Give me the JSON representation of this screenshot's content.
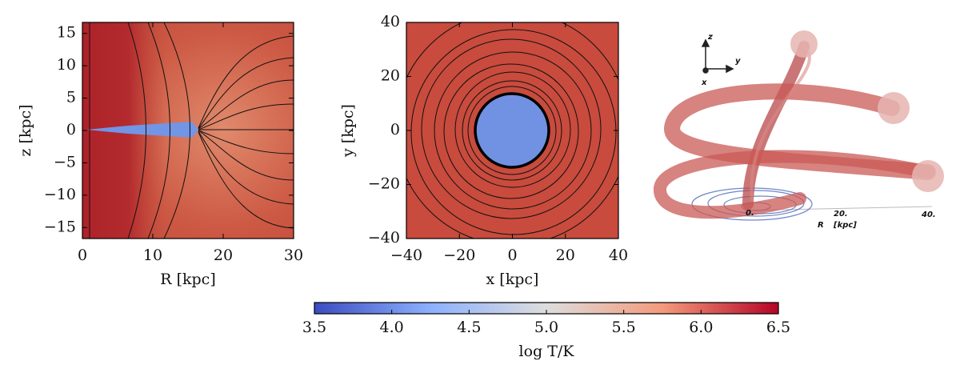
{
  "chart_data": [
    {
      "type": "heatmap",
      "xlabel": "R [kpc]",
      "ylabel": "z [kpc]",
      "xlim": [
        0,
        30
      ],
      "ylim": [
        -16.7,
        16.7
      ],
      "xticks": [
        0,
        10,
        20,
        30
      ],
      "yticks": [
        {
          "value": -15,
          "label": "−15"
        },
        {
          "value": -10,
          "label": "−10"
        },
        {
          "value": -5,
          "label": "−5"
        },
        0,
        5,
        10,
        15
      ]
    },
    {
      "type": "heatmap",
      "xlabel": "x [kpc]",
      "ylabel": "y [kpc]",
      "xlim": [
        -40,
        40
      ],
      "ylim": [
        -40,
        40
      ],
      "xticks": [
        {
          "value": -40,
          "label": "−40"
        },
        {
          "value": -20,
          "label": "−20"
        },
        0,
        20,
        40
      ],
      "yticks": [
        {
          "value": -40,
          "label": "−40"
        },
        {
          "value": -20,
          "label": "−20"
        },
        0,
        20,
        40
      ]
    },
    {
      "type": "3d",
      "axis_labels": [
        "z",
        "y",
        "x"
      ],
      "rlabel": "R",
      "runit": "[kpc]",
      "rticks": [
        {
          "value": 0,
          "label": "0."
        },
        {
          "value": 20,
          "label": "20."
        },
        {
          "value": 40,
          "label": "40."
        }
      ]
    }
  ],
  "colorbar": {
    "label": "log T/K",
    "lim": [
      3.5,
      6.5
    ],
    "ticks": [
      3.5,
      {
        "value": 4,
        "label": "4.0"
      },
      4.5,
      {
        "value": 5,
        "label": "5.0"
      },
      5.5,
      {
        "value": 6,
        "label": "6.0"
      },
      6.5
    ],
    "colors": [
      "#3b4cc0",
      "#8db0fe",
      "#dddddd",
      "#f49a7b",
      "#b40426"
    ]
  }
}
